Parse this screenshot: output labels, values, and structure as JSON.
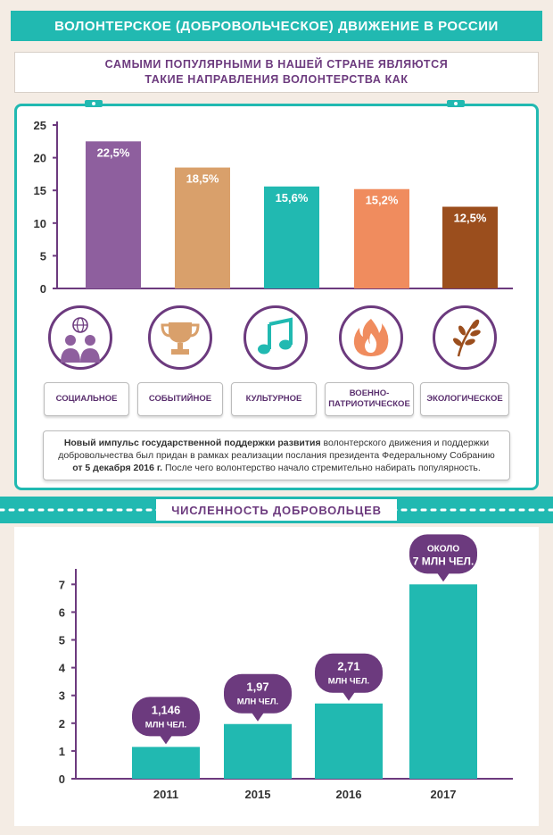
{
  "header": {
    "title": "ВОЛОНТЕРСКОЕ (ДОБРОВОЛЬЧЕСКОЕ) ДВИЖЕНИЕ В РОССИИ"
  },
  "subtitle": {
    "line1": "САМЫМИ ПОПУЛЯРНЫМИ В НАШЕЙ СТРАНЕ ЯВЛЯЮТСЯ",
    "line2": "ТАКИЕ НАПРАВЛЕНИЯ ВОЛОНТЕРСТВА КАК"
  },
  "categories": [
    {
      "label": "СОЦИАЛЬНОЕ",
      "icon": "people-globe-icon"
    },
    {
      "label": "СОБЫТИЙНОЕ",
      "icon": "trophy-icon"
    },
    {
      "label": "КУЛЬТУРНОЕ",
      "icon": "music-note-icon"
    },
    {
      "label1": "ВОЕННО-",
      "label2": "ПАТРИОТИЧЕСКОЕ",
      "icon": "fire-icon"
    },
    {
      "label": "ЭКОЛОГИЧЕСКОЕ",
      "icon": "branch-icon"
    }
  ],
  "note": {
    "bold1": "Новый импульс государственной поддержки развития",
    "text1": " волонтерского движения и поддержки добровольчества был придан в рамках реализации послания президента Федеральному Собранию ",
    "bold2": "от 5 декабря 2016 г.",
    "text2": " После чего волонтерство начало стремительно набирать популярность."
  },
  "section2": {
    "title": "ЧИСЛЕННОСТЬ ДОБРОВОЛЬЦЕВ"
  },
  "colors": {
    "teal": "#21b9b1",
    "purple": "#6c3a7e",
    "bar1": "#8e5f9e",
    "bar2": "#d9a06b",
    "bar3": "#21b9b1",
    "bar4": "#f08c5e",
    "bar5": "#9b4e1d"
  },
  "chart_data": [
    {
      "type": "bar",
      "categories": [
        "СОЦИАЛЬНОЕ",
        "СОБЫТИЙНОЕ",
        "КУЛЬТУРНОЕ",
        "ВОЕННО-ПАТРИОТИЧЕСКОЕ",
        "ЭКОЛОГИЧЕСКОЕ"
      ],
      "values": [
        22.5,
        18.5,
        15.6,
        15.2,
        12.5
      ],
      "value_labels": [
        "22,5%",
        "18,5%",
        "15,6%",
        "15,2%",
        "12,5%"
      ],
      "bar_colors": [
        "#8e5f9e",
        "#d9a06b",
        "#21b9b1",
        "#f08c5e",
        "#9b4e1d"
      ],
      "yticks": [
        "0",
        "5",
        "10",
        "15",
        "20",
        "25"
      ],
      "ylim": [
        0,
        25
      ],
      "grid": false
    },
    {
      "type": "bar",
      "categories": [
        "2011",
        "2015",
        "2016",
        "2017"
      ],
      "values": [
        1.146,
        1.97,
        2.71,
        7
      ],
      "callouts": [
        {
          "line1": "1,146",
          "line2": "МЛН ЧЕЛ."
        },
        {
          "line1": "1,97",
          "line2": "МЛН ЧЕЛ."
        },
        {
          "line1": "2,71",
          "line2": "МЛН ЧЕЛ."
        },
        {
          "line1": "ОКОЛО",
          "line2": "7 МЛН ЧЕЛ."
        }
      ],
      "yticks": [
        "0",
        "1",
        "2",
        "3",
        "4",
        "5",
        "6",
        "7"
      ],
      "ylim": [
        0,
        7.3
      ],
      "grid": false
    }
  ]
}
